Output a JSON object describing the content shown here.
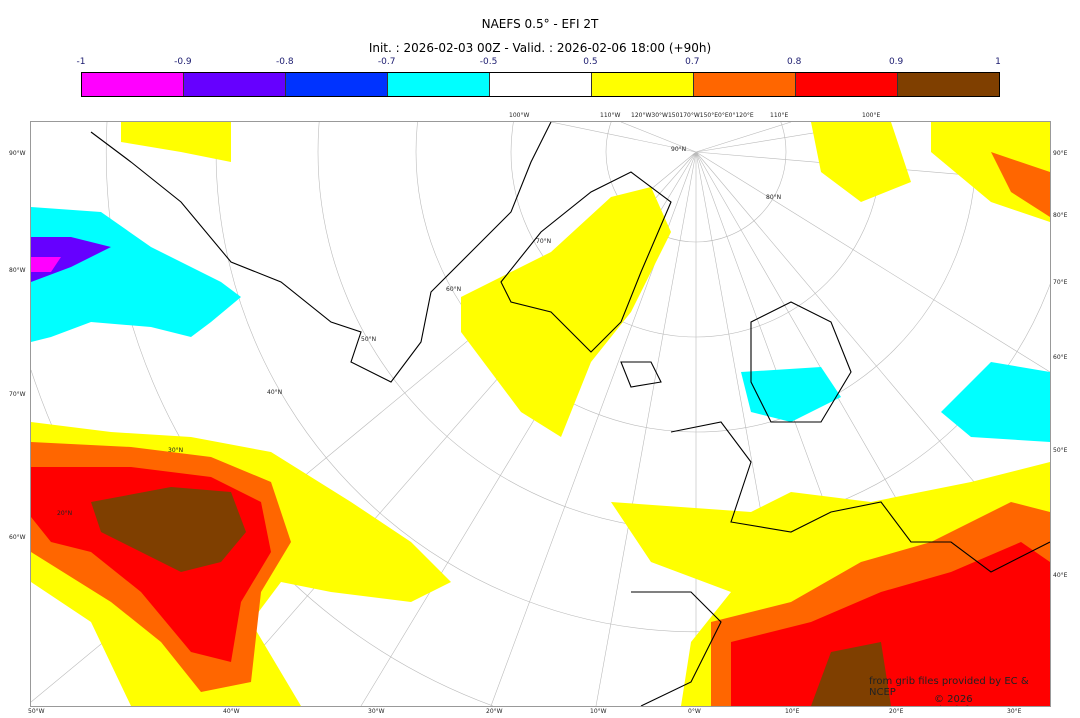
{
  "title": "NAEFS 0.5° - EFI 2T",
  "subtitle": "Init. : 2026-02-03 00Z - Valid. : 2026-02-06 18:00 (+90h)",
  "colorbar": {
    "ticks": [
      "-1",
      "-0.9",
      "-0.8",
      "-0.7",
      "-0.5",
      "0.5",
      "0.7",
      "0.8",
      "0.9",
      "1"
    ],
    "colors": [
      "#ff00ff",
      "#6600ff",
      "#0033ff",
      "#00ffff",
      "#ffffff",
      "#ffff00",
      "#ff6600",
      "#ff0000",
      "#7f3f00"
    ]
  },
  "axes": {
    "left": [
      "90°W",
      "80°W",
      "70°W",
      "60°W"
    ],
    "right": [
      "90°E",
      "80°E",
      "70°E",
      "60°E",
      "50°E",
      "40°E"
    ],
    "bottom": [
      "50°W",
      "40°W",
      "30°W",
      "20°W",
      "10°W",
      "0°W",
      "10°E",
      "20°E",
      "30°E"
    ],
    "top": [
      "100°W",
      "110°W",
      "120°W30°W150170°W150°E0°E0°120°E",
      "110°E",
      "100°E"
    ],
    "inner": [
      "90°N",
      "80°N",
      "70°N",
      "60°N",
      "50°N",
      "40°N",
      "30°N",
      "20°N"
    ]
  },
  "credit": {
    "line1": "from grib files provided by EC & NCEP",
    "line2": "© 2026 sb@infrazone.net"
  }
}
